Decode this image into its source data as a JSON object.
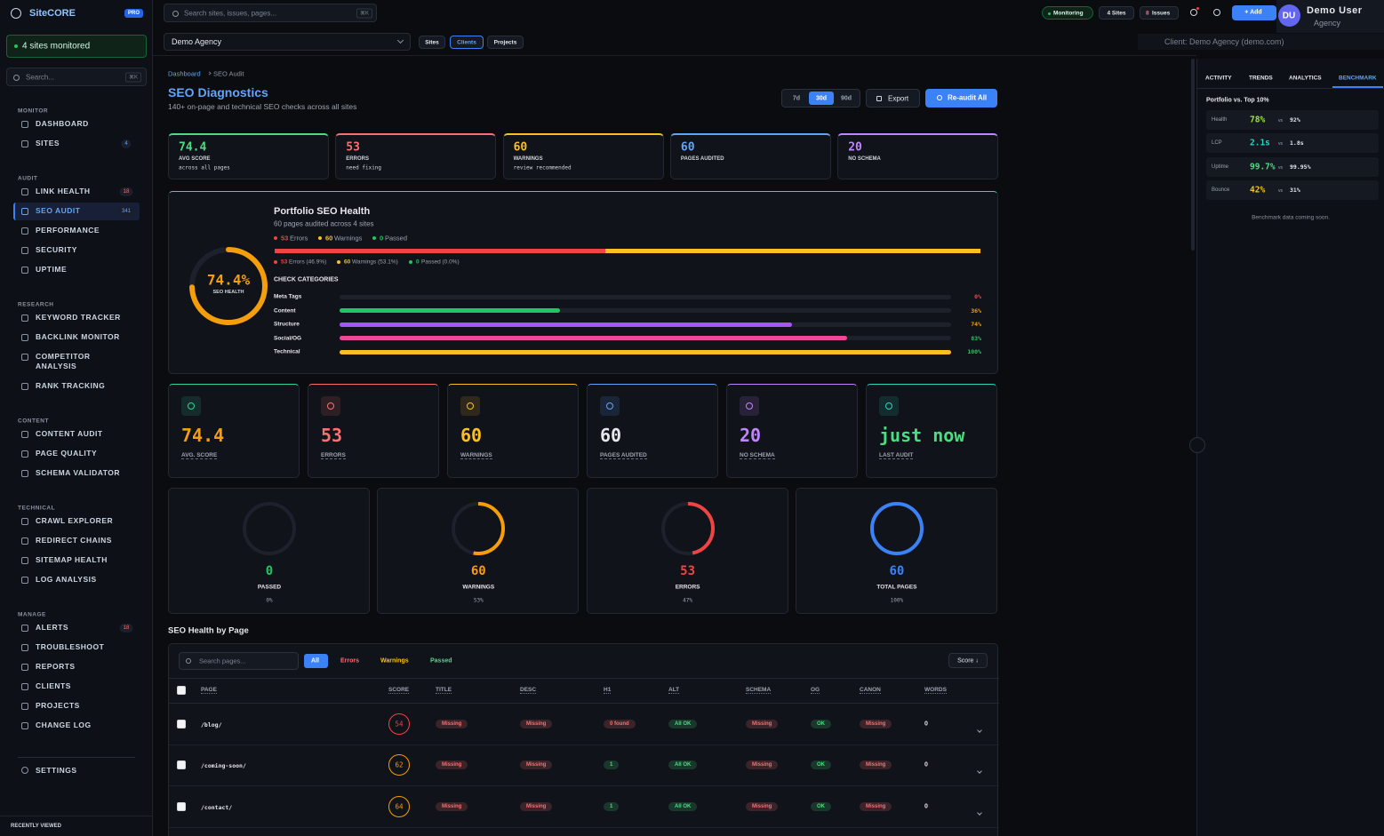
{
  "brand": {
    "name": "SiteCORE",
    "badge": "PRO"
  },
  "sidebar": {
    "status": "4 sites monitored",
    "search": "Search...",
    "search_key": "⌘K",
    "sections": [
      {
        "title": "MONITOR",
        "items": [
          {
            "label": "DASHBOARD"
          },
          {
            "label": "SITES",
            "badge": 4,
            "badge_color": "#60a5fa"
          }
        ]
      },
      {
        "title": "AUDIT",
        "items": [
          {
            "label": "LINK HEALTH",
            "badge": 18,
            "badge_color": "#f87171"
          },
          {
            "label": "SEO AUDIT",
            "badge": 341,
            "badge_color": "#60a5fa",
            "active": true
          },
          {
            "label": "PERFORMANCE"
          },
          {
            "label": "SECURITY"
          },
          {
            "label": "UPTIME"
          }
        ]
      },
      {
        "title": "RESEARCH",
        "items": [
          {
            "label": "KEYWORD TRACKER"
          },
          {
            "label": "BACKLINK MONITOR"
          },
          {
            "label": "COMPETITOR ANALYSIS"
          },
          {
            "label": "RANK TRACKING"
          }
        ]
      },
      {
        "title": "CONTENT",
        "items": [
          {
            "label": "CONTENT AUDIT"
          },
          {
            "label": "PAGE QUALITY"
          },
          {
            "label": "SCHEMA VALIDATOR"
          }
        ]
      },
      {
        "title": "TECHNICAL",
        "items": [
          {
            "label": "CRAWL EXPLORER"
          },
          {
            "label": "REDIRECT CHAINS"
          },
          {
            "label": "SITEMAP HEALTH"
          },
          {
            "label": "LOG ANALYSIS"
          }
        ]
      },
      {
        "title": "MANAGE",
        "items": [
          {
            "label": "ALERTS",
            "badge": 18,
            "badge_color": "#f87171"
          },
          {
            "label": "TROUBLESHOOT"
          },
          {
            "label": "REPORTS"
          },
          {
            "label": "CLIENTS"
          },
          {
            "label": "PROJECTS"
          },
          {
            "label": "CHANGE LOG"
          }
        ]
      }
    ],
    "settings": "SETTINGS",
    "recent": "RECENTLY VIEWED"
  },
  "topbar": {
    "search": "Search sites, issues, pages...",
    "search_key": "⌘K",
    "monitoring": "Monitoring",
    "sites": "4 Sites",
    "issues_count": 8,
    "issues": "Issues",
    "add": "+ Add",
    "user_initials": "DU",
    "user_name": "Demo User",
    "user_role": "Agency"
  },
  "subbar": {
    "client": "Demo Agency",
    "tabs": [
      "Sites",
      "Clients",
      "Projects"
    ],
    "active_tab": 1,
    "client_label": "Client: Demo Agency (demo.com)"
  },
  "page": {
    "breadcrumb": [
      "Dashboard",
      "SEO Audit"
    ],
    "title": "SEO Diagnostics",
    "subtitle": "140+ on-page and technical SEO checks across all sites",
    "ranges": [
      "7d",
      "30d",
      "90d"
    ],
    "active_range": 1,
    "export": "Export",
    "reaudit": "Re-audit All"
  },
  "summary": [
    {
      "value": 74.4,
      "label": "AVG SCORE",
      "sub": "across all pages",
      "color": "#4ade80"
    },
    {
      "value": 53,
      "label": "ERRORS",
      "sub": "need fixing",
      "color": "#f87171"
    },
    {
      "value": 60,
      "label": "WARNINGS",
      "sub": "review recommended",
      "color": "#fbbf24"
    },
    {
      "value": 60,
      "label": "PAGES AUDITED",
      "color": "#60a5fa"
    },
    {
      "value": 20,
      "label": "NO SCHEMA",
      "color": "#c084fc"
    }
  ],
  "health": {
    "title": "Portfolio SEO Health",
    "subtitle": "60 pages audited across 4 sites",
    "score": 74.4,
    "score_label": "74.4%",
    "score_caption": "SEO HEALTH",
    "color": "#f59e0b",
    "counts": [
      {
        "name": "Errors",
        "value": 53,
        "color": "#ef4444",
        "detail": "Errors (46.9%)"
      },
      {
        "name": "Warnings",
        "value": 60,
        "color": "#fbbf24",
        "detail": "Warnings (53.1%)"
      },
      {
        "name": "Passed",
        "value": 0,
        "color": "#22c55e",
        "detail": "Passed (0.0%)"
      }
    ],
    "categories_title": "CHECK CATEGORIES",
    "categories": [
      {
        "name": "Meta Tags",
        "value": 0,
        "value_label": "0%",
        "color": "#ef4444",
        "label_color": "#ef4444"
      },
      {
        "name": "Content",
        "value": 36,
        "value_label": "36%",
        "color": "#22c55e",
        "label_color": "#f59e0b"
      },
      {
        "name": "Structure",
        "value": 74,
        "value_label": "74%",
        "color": "#a855f7",
        "label_color": "#f59e0b"
      },
      {
        "name": "Social/OG",
        "value": 83,
        "value_label": "83%",
        "color": "#ec4899",
        "label_color": "#22c55e"
      },
      {
        "name": "Technical",
        "value": 100,
        "value_label": "100%",
        "color": "#fbbf24",
        "label_color": "#22c55e"
      }
    ]
  },
  "metrics": [
    {
      "value": 74.4,
      "label": "AVG. SCORE",
      "color": "#f59e0b",
      "icon_color": "#34d399"
    },
    {
      "value": 53,
      "label": "ERRORS",
      "color": "#f87171",
      "icon_color": "#f87171"
    },
    {
      "value": 60,
      "label": "WARNINGS",
      "color": "#fbbf24",
      "icon_color": "#fbbf24"
    },
    {
      "value": 60,
      "label": "PAGES AUDITED",
      "color": "#e5e7eb",
      "icon_color": "#60a5fa"
    },
    {
      "value": 20,
      "label": "NO SCHEMA",
      "color": "#c084fc",
      "icon_color": "#c084fc"
    },
    {
      "value": "just now",
      "label": "LAST AUDIT",
      "color": "#4ade80",
      "icon_color": "#2dd4bf"
    }
  ],
  "donuts": [
    {
      "value": 0,
      "label": "PASSED",
      "pct": 0,
      "pct_label": "0%",
      "color": "#22c55e"
    },
    {
      "value": 60,
      "label": "WARNINGS",
      "pct": 53,
      "pct_label": "53%",
      "color": "#f59e0b"
    },
    {
      "value": 53,
      "label": "ERRORS",
      "pct": 47,
      "pct_label": "47%",
      "color": "#ef4444"
    },
    {
      "value": 60,
      "label": "TOTAL PAGES",
      "pct": 100,
      "pct_label": "100%",
      "color": "#3b82f6"
    }
  ],
  "table": {
    "title": "SEO Health by Page",
    "search": "Search pages...",
    "filters": [
      {
        "label": "All",
        "color": "#ffffff"
      },
      {
        "label": "Errors",
        "color": "#f87171"
      },
      {
        "label": "Warnings",
        "color": "#fbbf24"
      },
      {
        "label": "Passed",
        "color": "#4ade80"
      }
    ],
    "active_filter": 0,
    "sort": "Score ↓",
    "columns": [
      "PAGE",
      "SCORE",
      "TITLE",
      "DESC",
      "H1",
      "ALT",
      "SCHEMA",
      "OG",
      "CANON",
      "WORDS"
    ],
    "rows": [
      {
        "page": "/blog/",
        "score": 54,
        "score_color": "#ef4444",
        "cells": [
          {
            "text": "Missing",
            "color": "#f87171"
          },
          {
            "text": "Missing",
            "color": "#f87171"
          },
          {
            "text": "0 found",
            "color": "#f87171"
          },
          {
            "text": "All OK",
            "color": "#4ade80"
          },
          {
            "text": "Missing",
            "color": "#f87171"
          },
          {
            "text": "OK",
            "color": "#4ade80"
          },
          {
            "text": "Missing",
            "color": "#f87171"
          }
        ],
        "words": 0
      },
      {
        "page": "/coming-soon/",
        "score": 62,
        "score_color": "#f59e0b",
        "cells": [
          {
            "text": "Missing",
            "color": "#f87171"
          },
          {
            "text": "Missing",
            "color": "#f87171"
          },
          {
            "text": 1,
            "color": "#4ade80"
          },
          {
            "text": "All OK",
            "color": "#4ade80"
          },
          {
            "text": "Missing",
            "color": "#f87171"
          },
          {
            "text": "OK",
            "color": "#4ade80"
          },
          {
            "text": "Missing",
            "color": "#f87171"
          }
        ],
        "words": 0
      },
      {
        "page": "/contact/",
        "score": 64,
        "score_color": "#f59e0b",
        "cells": [
          {
            "text": "Missing",
            "color": "#f87171"
          },
          {
            "text": "Missing",
            "color": "#f87171"
          },
          {
            "text": 1,
            "color": "#4ade80"
          },
          {
            "text": "All OK",
            "color": "#4ade80"
          },
          {
            "text": "Missing",
            "color": "#f87171"
          },
          {
            "text": "OK",
            "color": "#4ade80"
          },
          {
            "text": "Missing",
            "color": "#f87171"
          }
        ],
        "words": 0
      }
    ]
  },
  "right_panel": {
    "tabs": [
      "ACTIVITY",
      "TRENDS",
      "ANALYTICS",
      "BENCHMARK"
    ],
    "active_tab": 3,
    "heading": "Portfolio vs. Top 10%",
    "rows": [
      {
        "metric": "Health",
        "value": "78%",
        "color": "#a3e635",
        "vs": "vs",
        "top": "92%"
      },
      {
        "metric": "LCP",
        "value": "2.1s",
        "color": "#2dd4bf",
        "vs": "vs",
        "top": "1.8s"
      },
      {
        "metric": "Uptime",
        "value": "99.7%",
        "color": "#4ade80",
        "vs": "vs",
        "top": "99.95%"
      },
      {
        "metric": "Bounce",
        "value": "42%",
        "color": "#fbbf24",
        "vs": "vs",
        "top": "31%"
      }
    ],
    "note": "Benchmark data coming soon."
  }
}
